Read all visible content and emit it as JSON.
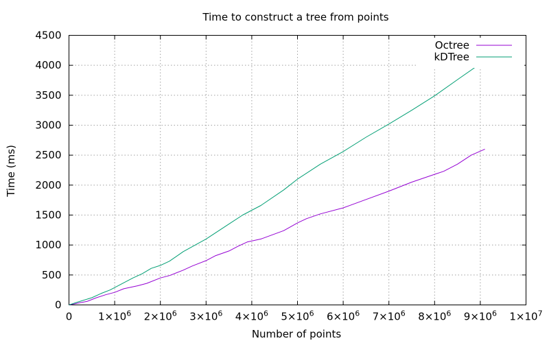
{
  "chart_data": {
    "type": "line",
    "title": "Time to construct a tree from points",
    "xlabel": "Number of points",
    "ylabel": "Time (ms)",
    "xlim": [
      0,
      10000000
    ],
    "ylim": [
      0,
      4500
    ],
    "x_ticks": [
      0,
      1000000,
      2000000,
      3000000,
      4000000,
      5000000,
      6000000,
      7000000,
      8000000,
      9000000,
      10000000
    ],
    "x_tick_labels": [
      {
        "mantissa": "0",
        "exp": ""
      },
      {
        "mantissa": "1×10",
        "exp": "6"
      },
      {
        "mantissa": "2×10",
        "exp": "6"
      },
      {
        "mantissa": "3×10",
        "exp": "6"
      },
      {
        "mantissa": "4×10",
        "exp": "6"
      },
      {
        "mantissa": "5×10",
        "exp": "6"
      },
      {
        "mantissa": "6×10",
        "exp": "6"
      },
      {
        "mantissa": "7×10",
        "exp": "6"
      },
      {
        "mantissa": "8×10",
        "exp": "6"
      },
      {
        "mantissa": "9×10",
        "exp": "6"
      },
      {
        "mantissa": "1×10",
        "exp": "7"
      }
    ],
    "y_ticks": [
      0,
      500,
      1000,
      1500,
      2000,
      2500,
      3000,
      3500,
      4000,
      4500
    ],
    "y_tick_labels": [
      "0",
      "500",
      "1000",
      "1500",
      "2000",
      "2500",
      "3000",
      "3500",
      "4000",
      "4500"
    ],
    "grid": true,
    "legend_position": "top-right",
    "series": [
      {
        "name": "Octree",
        "color": "#9400d3",
        "x": [
          0,
          200000,
          400000,
          600000,
          800000,
          1000000,
          1200000,
          1500000,
          1700000,
          2000000,
          2200000,
          2500000,
          2700000,
          3000000,
          3200000,
          3500000,
          3700000,
          3900000,
          4200000,
          4700000,
          5000000,
          5200000,
          5500000,
          6000000,
          6500000,
          7000000,
          7500000,
          8000000,
          8200000,
          8500000,
          8800000,
          9100000
        ],
        "y": [
          0,
          30,
          60,
          120,
          170,
          210,
          270,
          320,
          360,
          450,
          490,
          580,
          650,
          740,
          820,
          900,
          980,
          1050,
          1100,
          1240,
          1370,
          1440,
          1520,
          1620,
          1760,
          1900,
          2050,
          2180,
          2230,
          2350,
          2500,
          2600
        ]
      },
      {
        "name": "kDTree",
        "color": "#009e73",
        "x": [
          0,
          200000,
          500000,
          700000,
          900000,
          1000000,
          1200000,
          1400000,
          1600000,
          1800000,
          2000000,
          2200000,
          2500000,
          3000000,
          3500000,
          3800000,
          4200000,
          4700000,
          5000000,
          5500000,
          6000000,
          6500000,
          7000000,
          7500000,
          8000000,
          8500000,
          9100000
        ],
        "y": [
          0,
          50,
          120,
          190,
          250,
          290,
          370,
          450,
          520,
          610,
          660,
          730,
          890,
          1100,
          1350,
          1500,
          1660,
          1920,
          2100,
          2350,
          2560,
          2800,
          3020,
          3250,
          3490,
          3760,
          4080
        ]
      }
    ]
  }
}
